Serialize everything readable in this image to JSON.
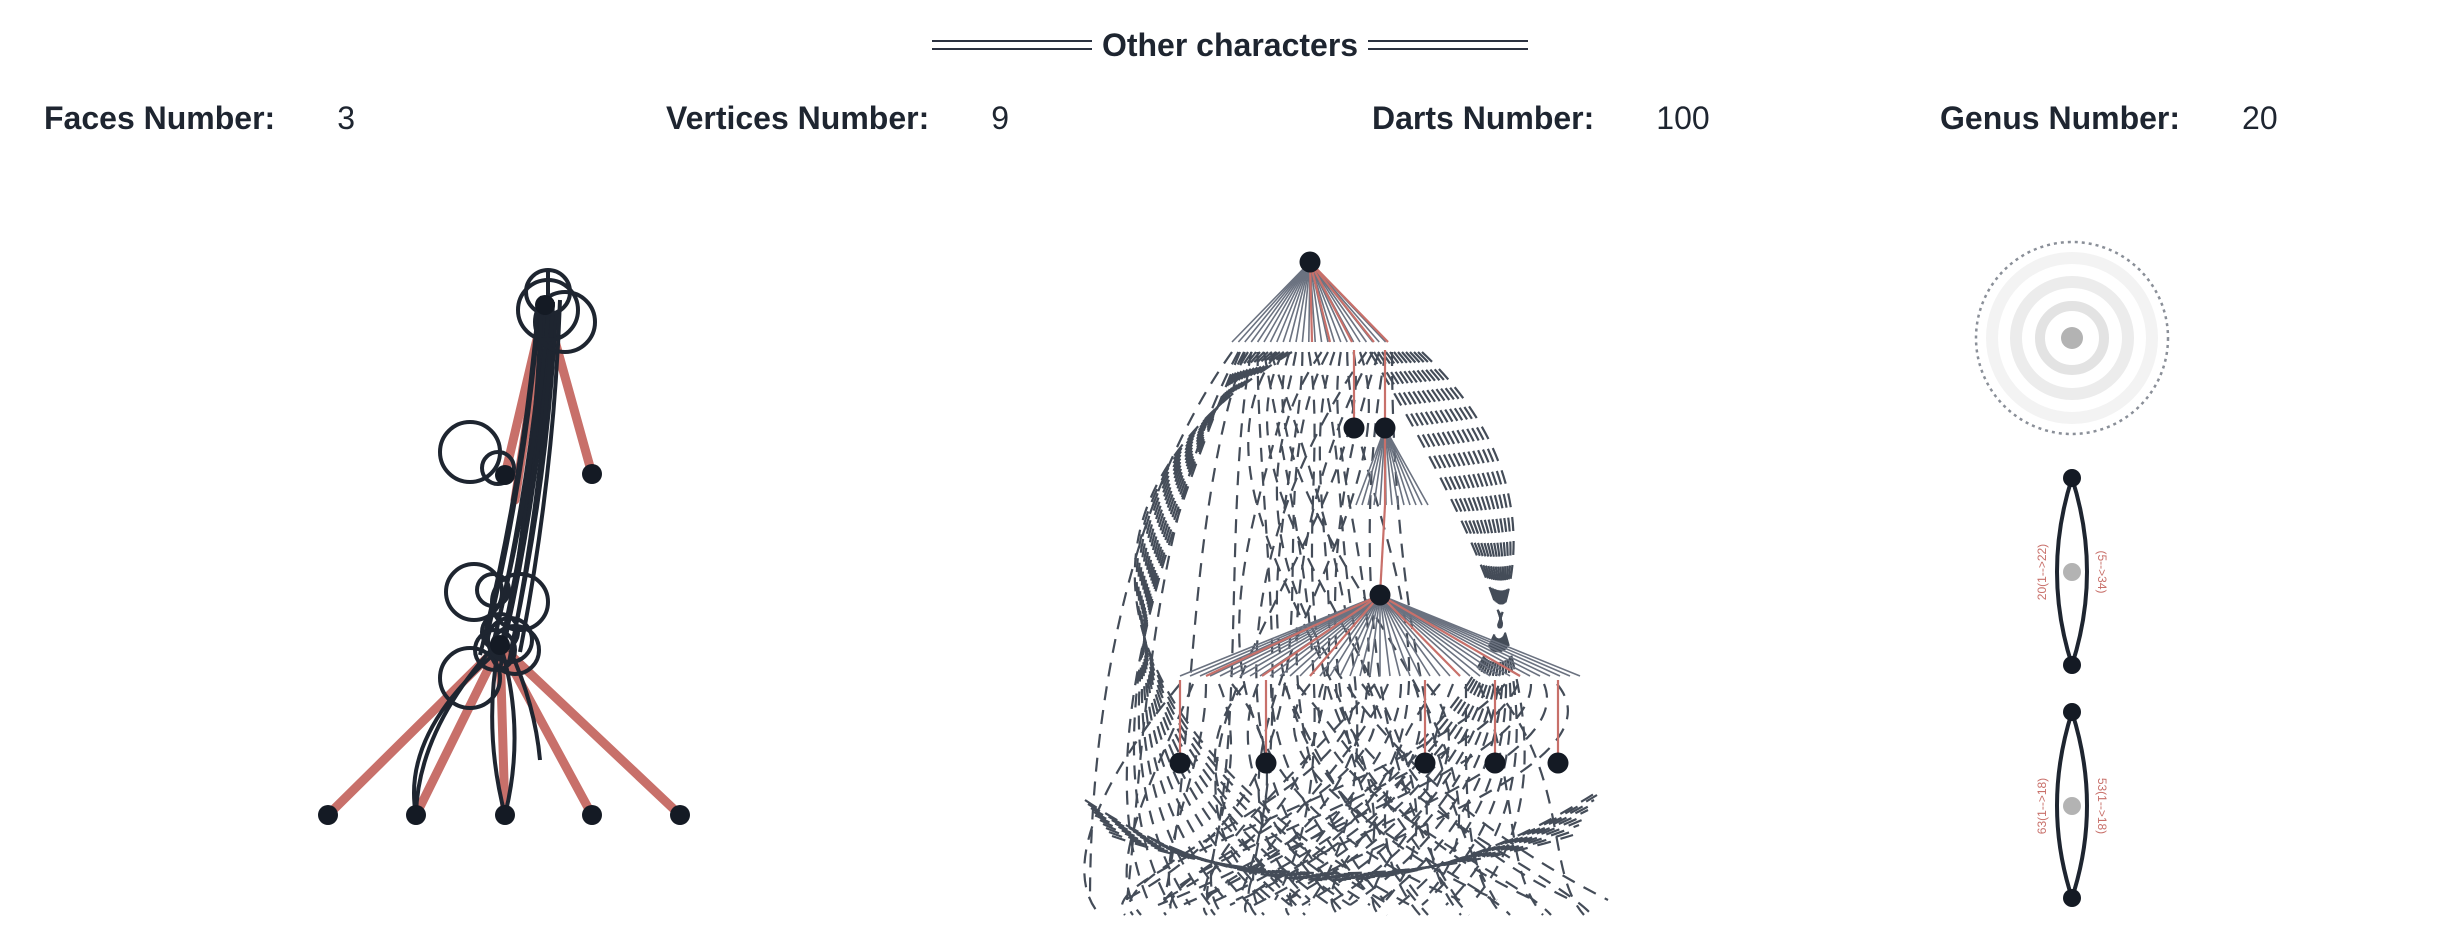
{
  "section": {
    "title": "Other characters"
  },
  "stats": {
    "faces": {
      "label": "Faces Number:",
      "value": "3"
    },
    "vertices": {
      "label": "Vertices Number:",
      "value": "9"
    },
    "darts": {
      "label": "Darts Number:",
      "value": "100"
    },
    "genus": {
      "label": "Genus Number:",
      "value": "20"
    }
  },
  "colors": {
    "node": "#141a24",
    "edge": "#1e2530",
    "tree_edge": "#c8706a",
    "dashed_edge": "#444c58",
    "face_center": "#b3b3b3"
  },
  "face_labels": {
    "top_left": "20(1-->22)",
    "top_right": "(5-->34)",
    "bottom_left": "63(1-->18)",
    "bottom_right": "53(1-->18)"
  }
}
